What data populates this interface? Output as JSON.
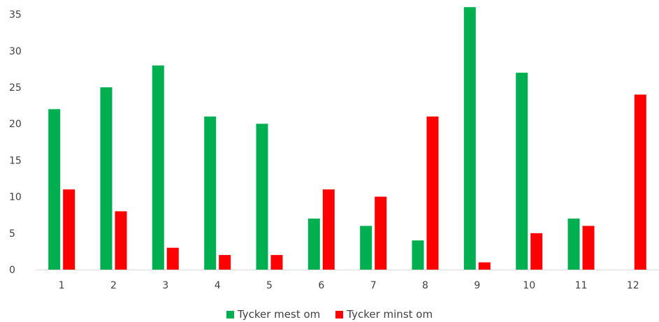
{
  "chart_data": {
    "type": "bar",
    "categories": [
      "1",
      "2",
      "3",
      "4",
      "5",
      "6",
      "7",
      "8",
      "9",
      "10",
      "11",
      "12"
    ],
    "series": [
      {
        "name": "Tycker mest om",
        "color": "#00b050",
        "values": [
          22,
          25,
          28,
          21,
          20,
          7,
          6,
          4,
          36,
          27,
          7,
          0
        ]
      },
      {
        "name": "Tycker minst om",
        "color": "#ff0000",
        "values": [
          11,
          8,
          3,
          2,
          2,
          11,
          10,
          21,
          1,
          5,
          6,
          24
        ]
      }
    ],
    "y_ticks": [
      "0",
      "5",
      "10",
      "15",
      "20",
      "25",
      "30",
      "35"
    ],
    "ylim": [
      0,
      36
    ],
    "grid": false,
    "legend_position": "bottom-center",
    "title": "",
    "xlabel": "",
    "ylabel": ""
  }
}
